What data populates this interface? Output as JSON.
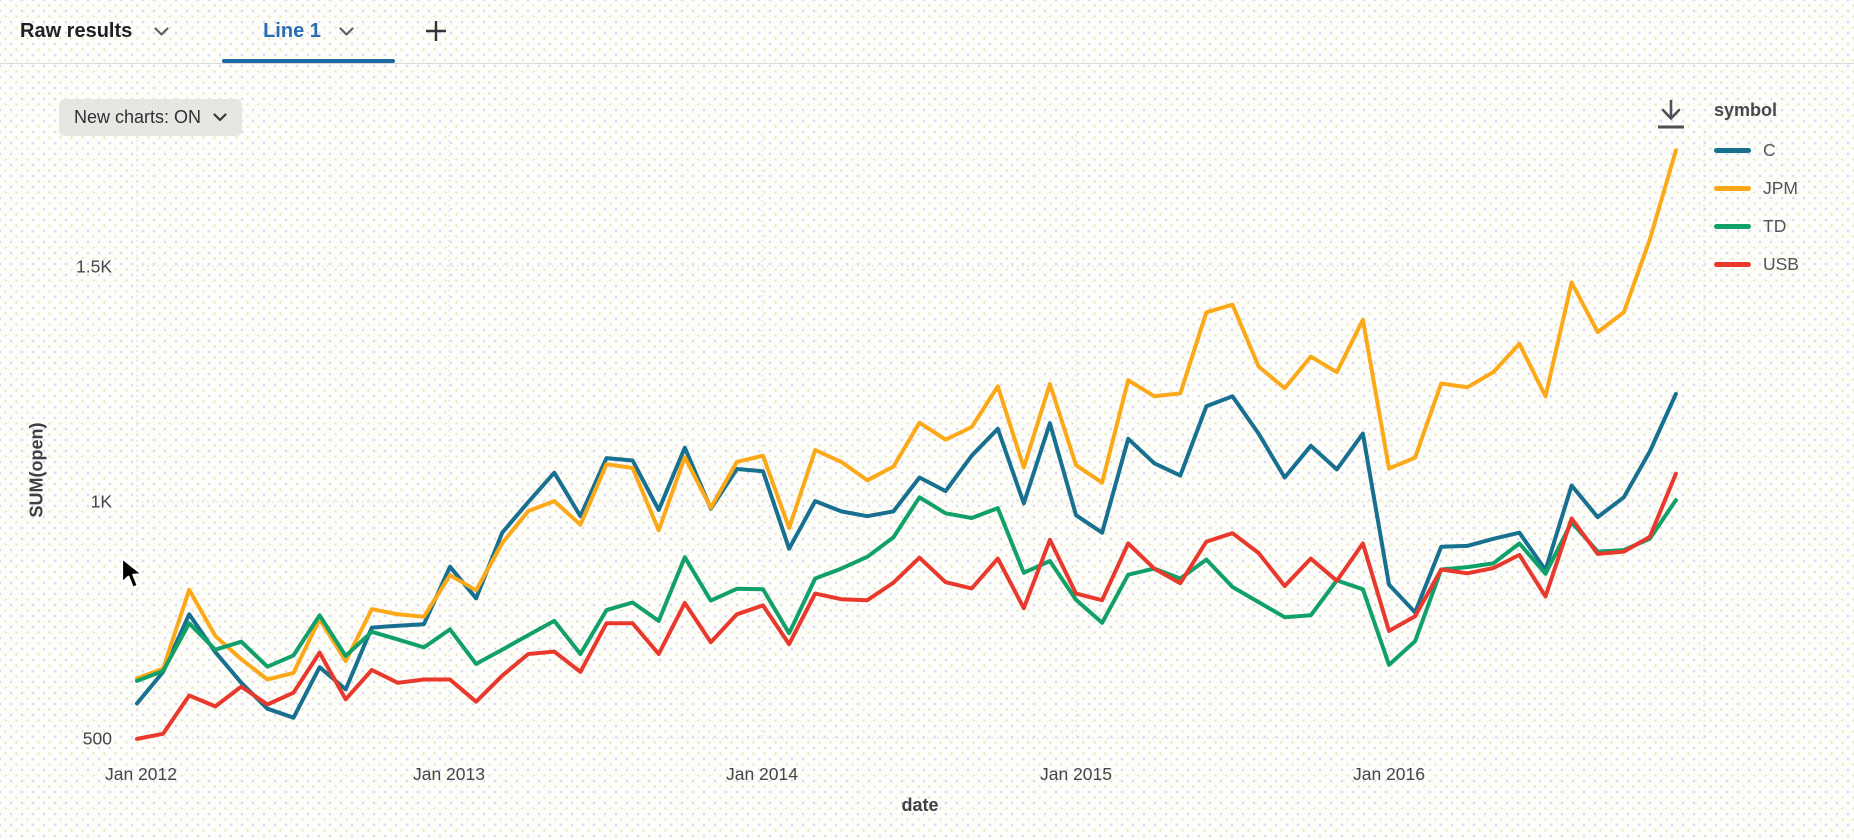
{
  "tab_bar": {
    "tabs": [
      {
        "label": "Raw results",
        "active": false
      },
      {
        "label": "Line 1",
        "active": true
      }
    ],
    "add_tab_label": "+"
  },
  "toolbar": {
    "new_charts_toggle": "New charts: ON"
  },
  "icons": {
    "download": "download-icon",
    "chevron": "chevron-down-icon",
    "add": "plus-icon",
    "cursor": "mouse-pointer"
  },
  "colors": {
    "active_tab": "#2a6cb2",
    "tab_underline": "#1b6aa6",
    "pill_background": "#e8e6e2",
    "series_c": "#17708f",
    "series_jpm": "#fba919",
    "series_td": "#11a168",
    "series_usb": "#e8392c"
  },
  "chart_data": {
    "type": "line",
    "title": "",
    "xlabel": "date",
    "ylabel": "SUM(open)",
    "legend_title": "symbol",
    "legend_position": "right",
    "grid": true,
    "x_tick_labels": [
      "Jan 2012",
      "Jan 2013",
      "Jan 2014",
      "Jan 2015",
      "Jan 2016"
    ],
    "y_tick_labels": [
      "500",
      "1K",
      "1.5K"
    ],
    "y_tick_values": [
      500,
      1000,
      1500
    ],
    "ylim": [
      450,
      1800
    ],
    "x": [
      "2012-01",
      "2012-02",
      "2012-03",
      "2012-04",
      "2012-05",
      "2012-06",
      "2012-07",
      "2012-08",
      "2012-09",
      "2012-10",
      "2012-11",
      "2012-12",
      "2013-01",
      "2013-02",
      "2013-03",
      "2013-04",
      "2013-05",
      "2013-06",
      "2013-07",
      "2013-08",
      "2013-09",
      "2013-10",
      "2013-11",
      "2013-12",
      "2014-01",
      "2014-02",
      "2014-03",
      "2014-04",
      "2014-05",
      "2014-06",
      "2014-07",
      "2014-08",
      "2014-09",
      "2014-10",
      "2014-11",
      "2014-12",
      "2015-01",
      "2015-02",
      "2015-03",
      "2015-04",
      "2015-05",
      "2015-06",
      "2015-07",
      "2015-08",
      "2015-09",
      "2015-10",
      "2015-11",
      "2015-12",
      "2016-01",
      "2016-02",
      "2016-03",
      "2016-04",
      "2016-05",
      "2016-06",
      "2016-07",
      "2016-08",
      "2016-09",
      "2016-10",
      "2016-11",
      "2016-12"
    ],
    "series": [
      {
        "name": "C",
        "color": "#17708f",
        "values": [
          573,
          640,
          762,
          682,
          617,
          562,
          543,
          650,
          603,
          734,
          738,
          741,
          863,
          796,
          935,
          1000,
          1062,
          970,
          1093,
          1088,
          983,
          1115,
          986,
          1070,
          1065,
          901,
          1002,
          980,
          970,
          980,
          1052,
          1023,
          1098,
          1155,
          997,
          1167,
          972,
          935,
          1134,
          1082,
          1056,
          1203,
          1224,
          1145,
          1052,
          1119,
          1069,
          1145,
          825,
          766,
          905,
          907,
          922,
          935,
          856,
          1035,
          968,
          1010,
          1107,
          1229
        ]
      },
      {
        "name": "JPM",
        "color": "#fba919",
        "values": [
          626,
          647,
          814,
          716,
          667,
          624,
          638,
          752,
          663,
          773,
          762,
          757,
          845,
          813,
          913,
          981,
          1002,
          952,
          1080,
          1072,
          940,
          1095,
          988,
          1085,
          1098,
          945,
          1110,
          1085,
          1046,
          1075,
          1168,
          1132,
          1159,
          1245,
          1073,
          1250,
          1078,
          1041,
          1258,
          1224,
          1230,
          1402,
          1418,
          1287,
          1241,
          1308,
          1275,
          1386,
          1071,
          1094,
          1251,
          1243,
          1275,
          1335,
          1224,
          1465,
          1360,
          1402,
          1556,
          1745
        ]
      },
      {
        "name": "TD",
        "color": "#11a168",
        "values": [
          621,
          642,
          743,
          687,
          704,
          651,
          675,
          760,
          674,
          725,
          709,
          692,
          730,
          657,
          687,
          718,
          748,
          678,
          771,
          787,
          748,
          883,
          791,
          816,
          815,
          722,
          838,
          859,
          884,
          925,
          1010,
          976,
          966,
          987,
          850,
          875,
          793,
          744,
          846,
          859,
          838,
          878,
          820,
          788,
          756,
          760,
          834,
          815,
          655,
          705,
          857,
          862,
          870,
          912,
          848,
          957,
          895,
          898,
          922,
          1004
        ]
      },
      {
        "name": "USB",
        "color": "#e8392c",
        "values": [
          498,
          509,
          590,
          567,
          609,
          571,
          596,
          681,
          582,
          644,
          617,
          624,
          624,
          577,
          632,
          678,
          683,
          640,
          743,
          743,
          678,
          786,
          703,
          762,
          781,
          699,
          806,
          794,
          792,
          829,
          882,
          830,
          817,
          880,
          775,
          920,
          806,
          792,
          912,
          859,
          828,
          916,
          934,
          892,
          822,
          880,
          833,
          912,
          727,
          758,
          857,
          849,
          860,
          888,
          800,
          965,
          890,
          895,
          926,
          1060
        ]
      }
    ]
  }
}
